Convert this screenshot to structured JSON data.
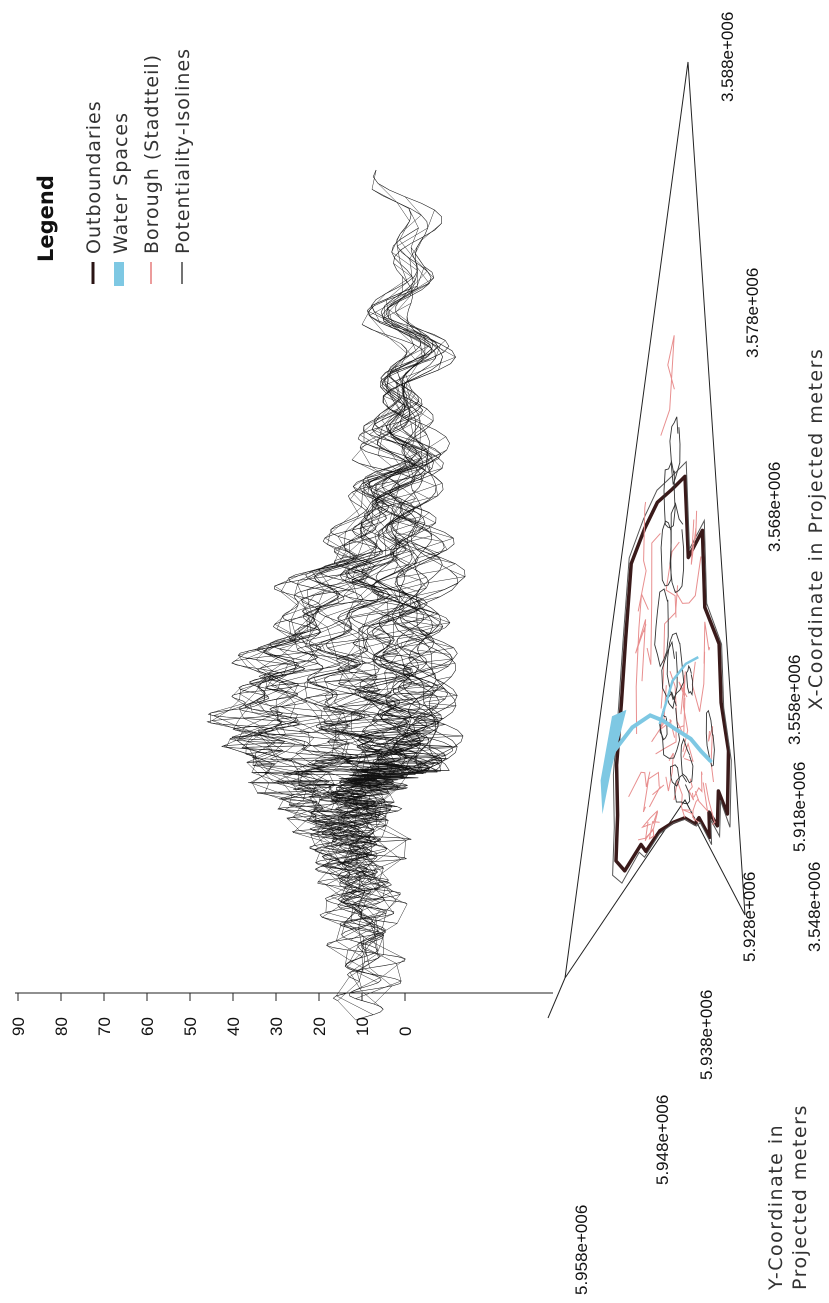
{
  "chart_data": {
    "type": "surface3d",
    "legend": {
      "title": "Legend",
      "entries": [
        {
          "label": "Outboundaries",
          "color": "#2a1414",
          "style": "thick-line"
        },
        {
          "label": "Water Spaces",
          "color": "#7ec8e3",
          "style": "patch"
        },
        {
          "label": "Borough (Stadtteil)",
          "color": "#e57a7a",
          "style": "line"
        },
        {
          "label": "Potentiality-Isolines",
          "color": "#444444",
          "style": "line"
        }
      ]
    },
    "z_axis": {
      "ticks": [
        "90",
        "80",
        "70",
        "60",
        "50",
        "40",
        "30",
        "20",
        "10",
        "0"
      ],
      "range": [
        0,
        90
      ]
    },
    "x_axis": {
      "label": "X-Coordinate in Projected meters",
      "ticks": [
        "3.548e+006",
        "3.558e+006",
        "3.568e+006",
        "3.578e+006",
        "3.588e+006"
      ]
    },
    "y_axis": {
      "label_lines": [
        "Y-Coordinate in",
        "Projected meters"
      ],
      "ticks": [
        "5.918e+006",
        "5.928e+006",
        "5.938e+006",
        "5.948e+006",
        "5.958e+006"
      ]
    },
    "colors": {
      "boundary": "#3a1a1a",
      "water": "#7ec8e3",
      "borough": "#e88f8f",
      "isoline": "#333333",
      "mesh": "#111111"
    }
  }
}
